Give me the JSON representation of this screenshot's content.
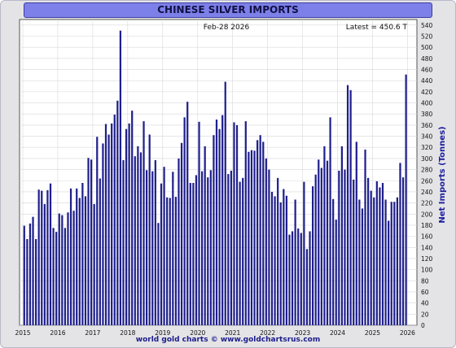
{
  "chart_data": {
    "type": "bar",
    "title": "CHINESE SILVER IMPORTS",
    "date_label": "Feb-28  2026",
    "latest_label": "Latest = 450.6 T",
    "ylabel": "Net Imports (Tonnes)",
    "footer": "world gold charts © www.goldchartsrus.com",
    "ylim": [
      0,
      550
    ],
    "y_ticks": [
      0,
      20,
      40,
      60,
      80,
      100,
      120,
      140,
      160,
      180,
      200,
      220,
      240,
      260,
      280,
      300,
      320,
      340,
      360,
      380,
      400,
      420,
      440,
      460,
      480,
      500,
      520,
      540
    ],
    "x_ticks": [
      "2015",
      "2016",
      "2017",
      "2018",
      "2019",
      "2020",
      "2021",
      "2022",
      "2023",
      "2024",
      "2025",
      "2026"
    ],
    "grid": true,
    "bar_color": "#1f1f8c",
    "start": "2015-01",
    "end": "2026-01",
    "values": [
      179,
      155,
      183,
      195,
      155,
      244,
      242,
      218,
      243,
      255,
      175,
      168,
      201,
      198,
      175,
      203,
      246,
      206,
      246,
      229,
      256,
      232,
      301,
      298,
      218,
      339,
      264,
      327,
      362,
      343,
      363,
      379,
      404,
      530,
      297,
      353,
      363,
      386,
      304,
      322,
      311,
      367,
      279,
      343,
      277,
      297,
      184,
      255,
      285,
      230,
      229,
      276,
      231,
      300,
      328,
      374,
      402,
      256,
      256,
      270,
      366,
      277,
      322,
      266,
      279,
      342,
      370,
      353,
      378,
      438,
      272,
      278,
      365,
      360,
      258,
      265,
      367,
      312,
      315,
      314,
      333,
      342,
      330,
      300,
      280,
      240,
      232,
      265,
      221,
      245,
      233,
      163,
      169,
      226,
      174,
      166,
      258,
      137,
      169,
      250,
      271,
      298,
      283,
      322,
      296,
      374,
      227,
      190,
      278,
      322,
      280,
      432,
      423,
      262,
      330,
      226,
      210,
      316,
      265,
      242,
      230,
      259,
      248,
      256,
      226,
      188,
      222,
      222,
      230,
      292,
      266,
      451
    ]
  }
}
